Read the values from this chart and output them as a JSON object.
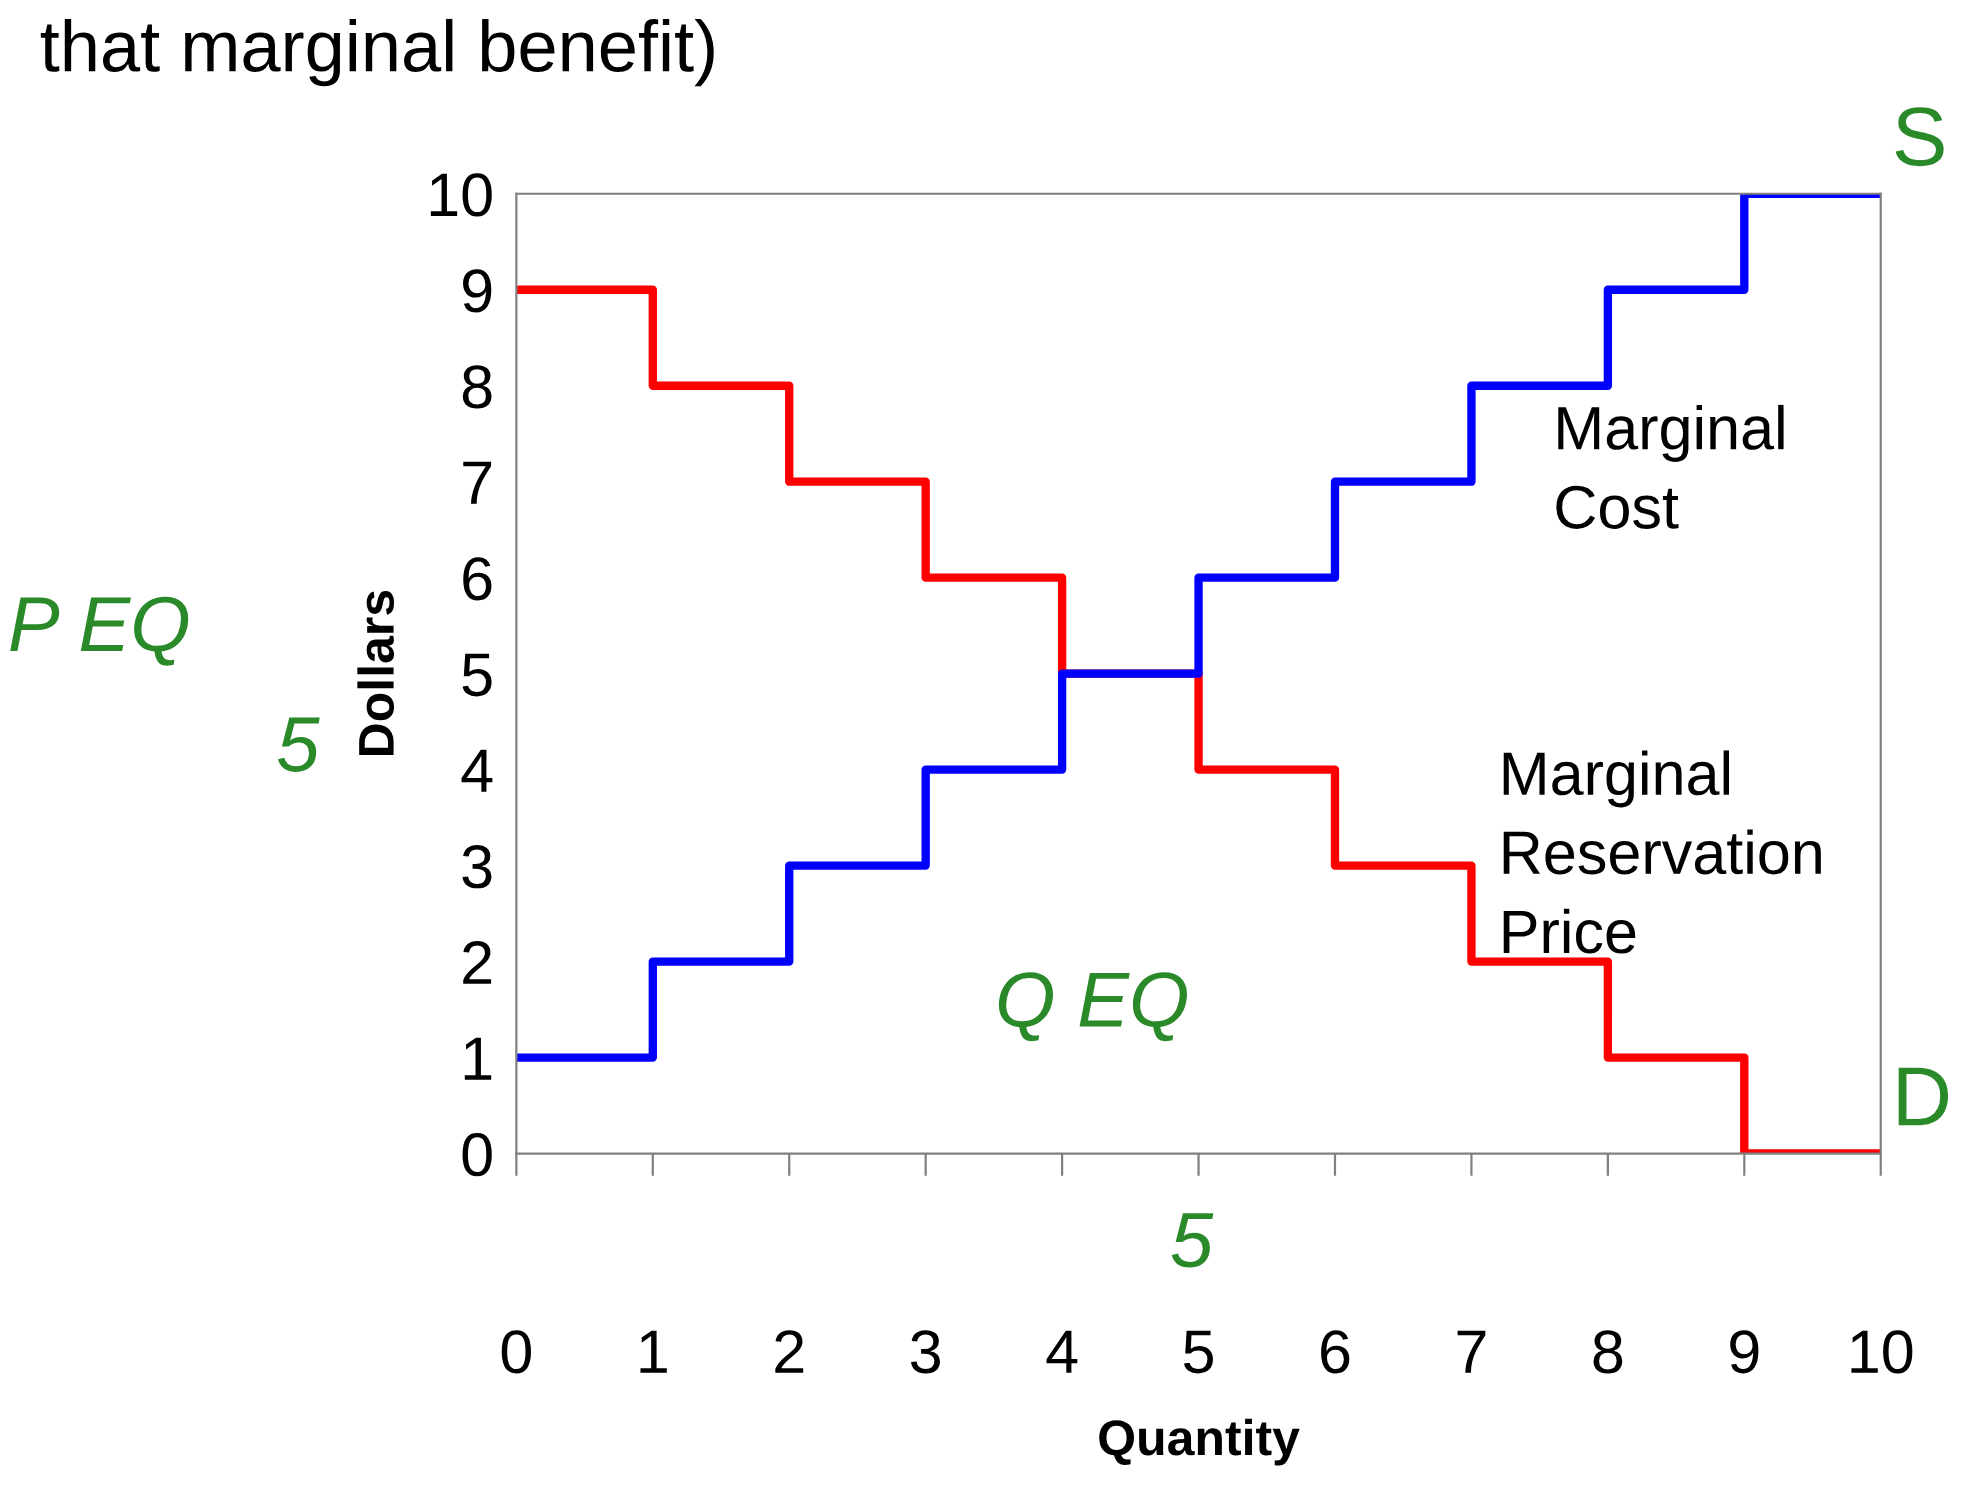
{
  "chart_data": {
    "type": "step",
    "title": "that marginal benefit)",
    "xlabel": "Quantity",
    "ylabel": "Dollars",
    "x": [
      0,
      1,
      2,
      3,
      4,
      5,
      6,
      7,
      8,
      9,
      10
    ],
    "series": [
      {
        "name": "Marginal Reservation Price",
        "color": "#ff0000",
        "values": [
          9,
          8,
          7,
          6,
          5,
          4,
          3,
          2,
          1,
          0,
          0
        ]
      },
      {
        "name": "Marginal Cost",
        "color": "#0000ff",
        "values": [
          1,
          2,
          3,
          4,
          5,
          6,
          7,
          8,
          9,
          10,
          10
        ]
      }
    ],
    "xlim": [
      0,
      10
    ],
    "ylim": [
      0,
      10
    ],
    "xticks": [
      0,
      1,
      2,
      3,
      4,
      5,
      6,
      7,
      8,
      9,
      10
    ],
    "yticks": [
      0,
      1,
      2,
      3,
      4,
      5,
      6,
      7,
      8,
      9,
      10
    ],
    "grid": false,
    "legend": false,
    "annotations": [
      "P EQ",
      "5",
      "Q EQ",
      "5",
      {
        "text": "S",
        "x": 10,
        "y": 10
      },
      {
        "text": "D",
        "x": 10,
        "y": 0
      }
    ]
  }
}
